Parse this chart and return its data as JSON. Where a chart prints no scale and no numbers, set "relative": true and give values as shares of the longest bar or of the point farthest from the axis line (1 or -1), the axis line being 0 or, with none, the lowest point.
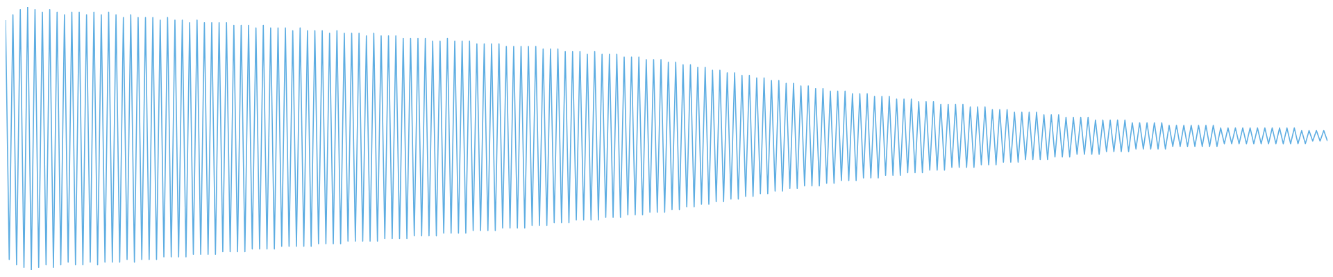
{
  "chart_data": {
    "type": "line",
    "relative": true,
    "legend": false,
    "categories": [
      null,
      null,
      null,
      null,
      null,
      null,
      null,
      null,
      null,
      null,
      null,
      null,
      null,
      null,
      null,
      null,
      null,
      null,
      null,
      null,
      null,
      null,
      null,
      null,
      null,
      null,
      null,
      null,
      null,
      null,
      null,
      null,
      null,
      null,
      null,
      null,
      null,
      null,
      null,
      null,
      null,
      null,
      null,
      null,
      null,
      null,
      null,
      null,
      null,
      null,
      null,
      null,
      null,
      null,
      null,
      null,
      null,
      null,
      null,
      null,
      null,
      null,
      null,
      null,
      null,
      null,
      null,
      null,
      null,
      null,
      null,
      null,
      null,
      null,
      null,
      null,
      null,
      null,
      null,
      null,
      null,
      null,
      null,
      null,
      null,
      null,
      null,
      null,
      null,
      null,
      null,
      null,
      null,
      null,
      null,
      null,
      null,
      null,
      null,
      null,
      null,
      null,
      null,
      null,
      null,
      null,
      null,
      null,
      null,
      null,
      null,
      null,
      null,
      null,
      null,
      null,
      null,
      null,
      null,
      null,
      null,
      null,
      null,
      null,
      null,
      null,
      null,
      null,
      null,
      null,
      null,
      null,
      null,
      null,
      null,
      null,
      null,
      null,
      null,
      null,
      null,
      null,
      null,
      null,
      null,
      null,
      null,
      null,
      null,
      null,
      null,
      null,
      null,
      null,
      null,
      null,
      null,
      null,
      null,
      null,
      null,
      null,
      null,
      null,
      null,
      null,
      null,
      null,
      null,
      null,
      null,
      null,
      null,
      null,
      null,
      null,
      null,
      null,
      null,
      null,
      null,
      null,
      null,
      null,
      null,
      null,
      null,
      null,
      null,
      null,
      null,
      null,
      null,
      null,
      null,
      null,
      null,
      null,
      null,
      null,
      null,
      null,
      null,
      null,
      null,
      null,
      null,
      null,
      null,
      null,
      null,
      null,
      null,
      null,
      null,
      null,
      null,
      null,
      null,
      null,
      null,
      null,
      null,
      null,
      null,
      null,
      null,
      null,
      null,
      null,
      null,
      null,
      null,
      null,
      null,
      null,
      null,
      null,
      null,
      null,
      null,
      null,
      null,
      null,
      null,
      null,
      null,
      null,
      null,
      null,
      null,
      null,
      null,
      null,
      null,
      null,
      null,
      null,
      null,
      null,
      null,
      null,
      null,
      null,
      null,
      null,
      null,
      null,
      null,
      null,
      null,
      null,
      null,
      null,
      null,
      null,
      null,
      null,
      null,
      null,
      null,
      null,
      null,
      null,
      null,
      null,
      null,
      null,
      null,
      null,
      null,
      null,
      null,
      null,
      null,
      null,
      null,
      null,
      null,
      null,
      null,
      null,
      null,
      null,
      null,
      null,
      null,
      null,
      null,
      null,
      null,
      null,
      null,
      null,
      null,
      null,
      null,
      null,
      null,
      null,
      null,
      null,
      null,
      null,
      null,
      null,
      null,
      null,
      null,
      null,
      null,
      null,
      null,
      null,
      null,
      null,
      null,
      null,
      null,
      null,
      null,
      null,
      null,
      null,
      null,
      null,
      null,
      null,
      null,
      null,
      null,
      null,
      null,
      null,
      null,
      null,
      null,
      null,
      null,
      null
    ],
    "series": [
      {
        "color": "#5dade2",
        "values": [
          0.95,
          0.04,
          0.97,
          0.02,
          0.99,
          0.01,
          1.0,
          0.0,
          0.99,
          0.01,
          0.98,
          0.02,
          0.99,
          0.01,
          0.98,
          0.02,
          0.97,
          0.03,
          0.98,
          0.02,
          0.98,
          0.02,
          0.97,
          0.03,
          0.98,
          0.02,
          0.97,
          0.03,
          0.98,
          0.03,
          0.97,
          0.03,
          0.96,
          0.04,
          0.97,
          0.03,
          0.96,
          0.04,
          0.96,
          0.04,
          0.96,
          0.04,
          0.95,
          0.05,
          0.96,
          0.05,
          0.95,
          0.05,
          0.95,
          0.05,
          0.94,
          0.06,
          0.95,
          0.06,
          0.94,
          0.06,
          0.94,
          0.06,
          0.94,
          0.07,
          0.94,
          0.07,
          0.93,
          0.07,
          0.93,
          0.07,
          0.93,
          0.08,
          0.92,
          0.08,
          0.93,
          0.08,
          0.92,
          0.08,
          0.92,
          0.09,
          0.92,
          0.09,
          0.91,
          0.09,
          0.92,
          0.09,
          0.91,
          0.09,
          0.91,
          0.1,
          0.91,
          0.1,
          0.9,
          0.1,
          0.91,
          0.1,
          0.9,
          0.11,
          0.9,
          0.11,
          0.9,
          0.11,
          0.89,
          0.11,
          0.9,
          0.11,
          0.89,
          0.12,
          0.89,
          0.12,
          0.89,
          0.12,
          0.88,
          0.12,
          0.88,
          0.13,
          0.88,
          0.13,
          0.88,
          0.13,
          0.87,
          0.13,
          0.87,
          0.14,
          0.88,
          0.14,
          0.87,
          0.14,
          0.87,
          0.14,
          0.87,
          0.15,
          0.86,
          0.15,
          0.86,
          0.15,
          0.86,
          0.15,
          0.86,
          0.16,
          0.85,
          0.16,
          0.85,
          0.16,
          0.85,
          0.16,
          0.85,
          0.17,
          0.85,
          0.17,
          0.84,
          0.17,
          0.84,
          0.18,
          0.84,
          0.18,
          0.83,
          0.18,
          0.83,
          0.19,
          0.83,
          0.19,
          0.82,
          0.19,
          0.83,
          0.19,
          0.82,
          0.2,
          0.82,
          0.2,
          0.82,
          0.2,
          0.81,
          0.21,
          0.81,
          0.21,
          0.81,
          0.21,
          0.8,
          0.22,
          0.8,
          0.22,
          0.8,
          0.22,
          0.79,
          0.23,
          0.79,
          0.23,
          0.78,
          0.24,
          0.78,
          0.24,
          0.77,
          0.25,
          0.77,
          0.25,
          0.76,
          0.26,
          0.76,
          0.26,
          0.75,
          0.27,
          0.75,
          0.27,
          0.74,
          0.28,
          0.74,
          0.28,
          0.73,
          0.29,
          0.73,
          0.29,
          0.72,
          0.3,
          0.72,
          0.3,
          0.71,
          0.31,
          0.71,
          0.31,
          0.7,
          0.32,
          0.7,
          0.32,
          0.69,
          0.32,
          0.69,
          0.33,
          0.68,
          0.33,
          0.68,
          0.34,
          0.68,
          0.34,
          0.67,
          0.34,
          0.67,
          0.35,
          0.67,
          0.35,
          0.66,
          0.35,
          0.66,
          0.36,
          0.66,
          0.36,
          0.65,
          0.36,
          0.65,
          0.37,
          0.65,
          0.37,
          0.64,
          0.37,
          0.64,
          0.38,
          0.64,
          0.38,
          0.63,
          0.38,
          0.63,
          0.39,
          0.63,
          0.39,
          0.63,
          0.39,
          0.62,
          0.39,
          0.62,
          0.4,
          0.62,
          0.4,
          0.61,
          0.4,
          0.61,
          0.41,
          0.61,
          0.41,
          0.6,
          0.41,
          0.6,
          0.42,
          0.6,
          0.42,
          0.6,
          0.42,
          0.59,
          0.42,
          0.59,
          0.43,
          0.59,
          0.43,
          0.58,
          0.43,
          0.58,
          0.44,
          0.58,
          0.44,
          0.58,
          0.44,
          0.57,
          0.44,
          0.57,
          0.45,
          0.57,
          0.45,
          0.57,
          0.45,
          0.57,
          0.45,
          0.56,
          0.46,
          0.56,
          0.46,
          0.56,
          0.46,
          0.56,
          0.46,
          0.56,
          0.46,
          0.55,
          0.47,
          0.55,
          0.47,
          0.55,
          0.47,
          0.55,
          0.47,
          0.55,
          0.47,
          0.55,
          0.47,
          0.55,
          0.47,
          0.54,
          0.48,
          0.54,
          0.48,
          0.54,
          0.48,
          0.54,
          0.48,
          0.54,
          0.48,
          0.54,
          0.48,
          0.54,
          0.48,
          0.54,
          0.48,
          0.54,
          0.48,
          0.54,
          0.48,
          0.54,
          0.48,
          0.53,
          0.48,
          0.53,
          0.49,
          0.53,
          0.49,
          0.53,
          0.49
        ]
      }
    ]
  }
}
